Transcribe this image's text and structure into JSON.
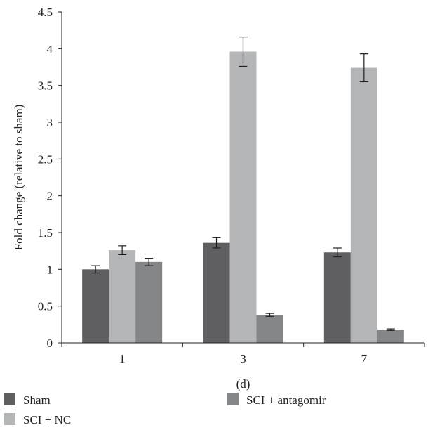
{
  "chart_data": {
    "type": "bar",
    "categories": [
      "1",
      "3",
      "7"
    ],
    "series": [
      {
        "name": "Sham",
        "values": [
          1.0,
          1.36,
          1.23
        ],
        "errors": [
          0.05,
          0.07,
          0.06
        ],
        "color": "#5f5f61"
      },
      {
        "name": "SCI + NC",
        "values": [
          1.26,
          3.96,
          3.74
        ],
        "errors": [
          0.06,
          0.2,
          0.19
        ],
        "color": "#b4b5b7"
      },
      {
        "name": "SCI + antagomir",
        "values": [
          1.1,
          0.38,
          0.18
        ],
        "errors": [
          0.05,
          0.02,
          0.01
        ],
        "color": "#848587"
      }
    ],
    "ylabel": "Fold change (relative to sham)",
    "xlabel": "(d)",
    "ylim": [
      0,
      4.5
    ],
    "yticks": [
      "0",
      "0.5",
      "1",
      "1.5",
      "2",
      "2.5",
      "3",
      "3.5",
      "4",
      "4.5"
    ],
    "grid": false,
    "legend_position": "bottom"
  }
}
